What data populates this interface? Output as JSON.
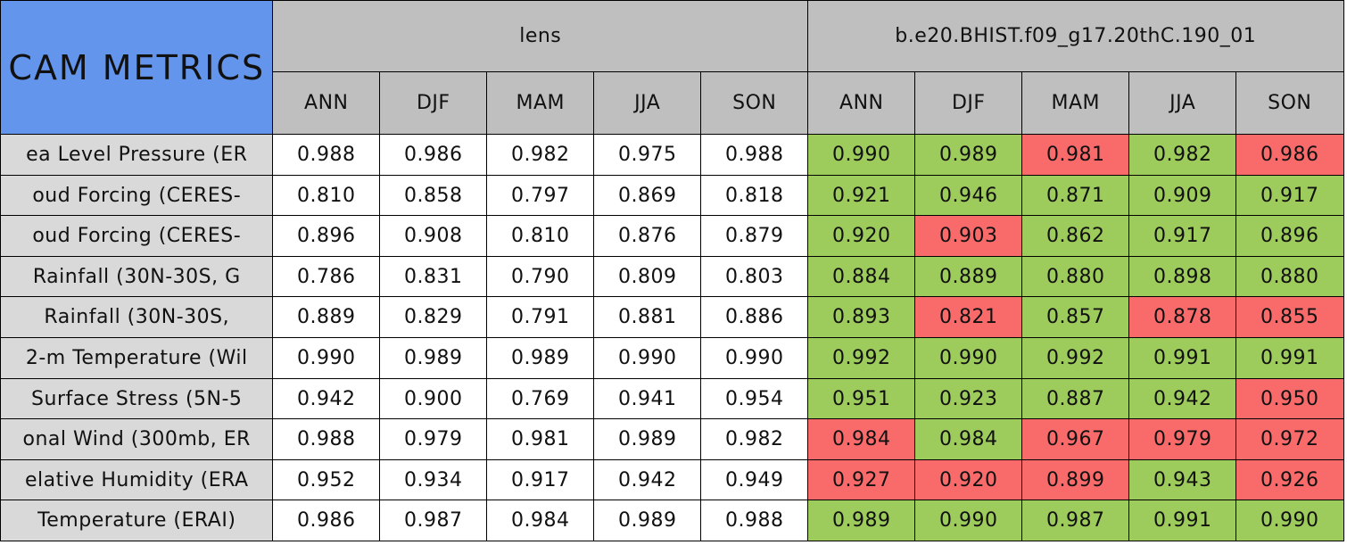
{
  "header": {
    "title": "CAM METRICS",
    "groups": [
      "lens",
      "b.e20.BHIST.f09_g17.20thC.190_01"
    ],
    "seasons": [
      [
        "ANN",
        "DJF",
        "MAM",
        "JJA",
        "SON"
      ],
      [
        "ANN",
        "DJF",
        "MAM",
        "JJA",
        "SON"
      ]
    ]
  },
  "rows": [
    {
      "label": "ea Level Pressure (ER",
      "values": [
        "0.988",
        "0.986",
        "0.982",
        "0.975",
        "0.988",
        "0.990",
        "0.989",
        "0.981",
        "0.982",
        "0.986"
      ],
      "colors": [
        "#ffffff",
        "#ffffff",
        "#ffffff",
        "#ffffff",
        "#ffffff",
        "#9dcb5c",
        "#9dcb5c",
        "#f96b6b",
        "#9dcb5c",
        "#f96b6b"
      ]
    },
    {
      "label": "oud Forcing (CERES-",
      "values": [
        "0.810",
        "0.858",
        "0.797",
        "0.869",
        "0.818",
        "0.921",
        "0.946",
        "0.871",
        "0.909",
        "0.917"
      ],
      "colors": [
        "#ffffff",
        "#ffffff",
        "#ffffff",
        "#ffffff",
        "#ffffff",
        "#9dcb5c",
        "#9dcb5c",
        "#9dcb5c",
        "#9dcb5c",
        "#9dcb5c"
      ]
    },
    {
      "label": "oud Forcing (CERES-",
      "values": [
        "0.896",
        "0.908",
        "0.810",
        "0.876",
        "0.879",
        "0.920",
        "0.903",
        "0.862",
        "0.917",
        "0.896"
      ],
      "colors": [
        "#ffffff",
        "#ffffff",
        "#ffffff",
        "#ffffff",
        "#ffffff",
        "#9dcb5c",
        "#f96b6b",
        "#9dcb5c",
        "#9dcb5c",
        "#9dcb5c"
      ]
    },
    {
      "label": "Rainfall (30N-30S, G",
      "values": [
        "0.786",
        "0.831",
        "0.790",
        "0.809",
        "0.803",
        "0.884",
        "0.889",
        "0.880",
        "0.898",
        "0.880"
      ],
      "colors": [
        "#ffffff",
        "#ffffff",
        "#ffffff",
        "#ffffff",
        "#ffffff",
        "#9dcb5c",
        "#9dcb5c",
        "#9dcb5c",
        "#9dcb5c",
        "#9dcb5c"
      ]
    },
    {
      "label": "Rainfall (30N-30S,",
      "values": [
        "0.889",
        "0.829",
        "0.791",
        "0.881",
        "0.886",
        "0.893",
        "0.821",
        "0.857",
        "0.878",
        "0.855"
      ],
      "colors": [
        "#ffffff",
        "#ffffff",
        "#ffffff",
        "#ffffff",
        "#ffffff",
        "#9dcb5c",
        "#f96b6b",
        "#9dcb5c",
        "#f96b6b",
        "#f96b6b"
      ]
    },
    {
      "label": "2-m Temperature (Wil",
      "values": [
        "0.990",
        "0.989",
        "0.989",
        "0.990",
        "0.990",
        "0.992",
        "0.990",
        "0.992",
        "0.991",
        "0.991"
      ],
      "colors": [
        "#ffffff",
        "#ffffff",
        "#ffffff",
        "#ffffff",
        "#ffffff",
        "#9dcb5c",
        "#9dcb5c",
        "#9dcb5c",
        "#9dcb5c",
        "#9dcb5c"
      ]
    },
    {
      "label": "Surface Stress (5N-5",
      "values": [
        "0.942",
        "0.900",
        "0.769",
        "0.941",
        "0.954",
        "0.951",
        "0.923",
        "0.887",
        "0.942",
        "0.950"
      ],
      "colors": [
        "#ffffff",
        "#ffffff",
        "#ffffff",
        "#ffffff",
        "#ffffff",
        "#9dcb5c",
        "#9dcb5c",
        "#9dcb5c",
        "#9dcb5c",
        "#f96b6b"
      ]
    },
    {
      "label": "onal Wind (300mb, ER",
      "values": [
        "0.988",
        "0.979",
        "0.981",
        "0.989",
        "0.982",
        "0.984",
        "0.984",
        "0.967",
        "0.979",
        "0.972"
      ],
      "colors": [
        "#ffffff",
        "#ffffff",
        "#ffffff",
        "#ffffff",
        "#ffffff",
        "#f96b6b",
        "#9dcb5c",
        "#f96b6b",
        "#f96b6b",
        "#f96b6b"
      ]
    },
    {
      "label": "elative Humidity (ERA",
      "values": [
        "0.952",
        "0.934",
        "0.917",
        "0.942",
        "0.949",
        "0.927",
        "0.920",
        "0.899",
        "0.943",
        "0.926"
      ],
      "colors": [
        "#ffffff",
        "#ffffff",
        "#ffffff",
        "#ffffff",
        "#ffffff",
        "#f96b6b",
        "#f96b6b",
        "#f96b6b",
        "#9dcb5c",
        "#f96b6b"
      ]
    },
    {
      "label": "Temperature (ERAI)",
      "values": [
        "0.986",
        "0.987",
        "0.984",
        "0.989",
        "0.988",
        "0.989",
        "0.990",
        "0.987",
        "0.991",
        "0.990"
      ],
      "colors": [
        "#ffffff",
        "#ffffff",
        "#ffffff",
        "#ffffff",
        "#ffffff",
        "#9dcb5c",
        "#9dcb5c",
        "#9dcb5c",
        "#9dcb5c",
        "#9dcb5c"
      ]
    }
  ]
}
